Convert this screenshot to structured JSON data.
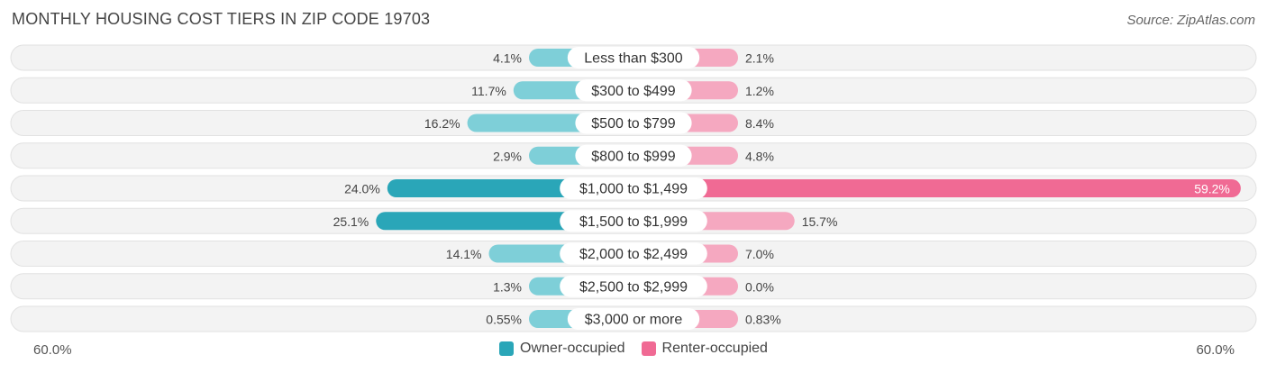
{
  "header": {
    "title": "MONTHLY HOUSING COST TIERS IN ZIP CODE 19703",
    "source": "Source: ZipAtlas.com"
  },
  "colors": {
    "owner": "#2aa6b8",
    "owner_light": "#7ecfd8",
    "renter": "#f06a94",
    "renter_light": "#f5a8c0",
    "row_bg": "#f1f1f1"
  },
  "chart_data": {
    "type": "bar",
    "orientation": "diverging-horizontal",
    "categories": [
      "Less than $300",
      "$300 to $499",
      "$500 to $799",
      "$800 to $999",
      "$1,000 to $1,499",
      "$1,500 to $1,999",
      "$2,000 to $2,499",
      "$2,500 to $2,999",
      "$3,000 or more"
    ],
    "series": [
      {
        "name": "Owner-occupied",
        "values": [
          4.1,
          11.7,
          16.2,
          2.9,
          24.0,
          25.1,
          14.1,
          1.3,
          0.55
        ],
        "labels": [
          "4.1%",
          "11.7%",
          "16.2%",
          "2.9%",
          "24.0%",
          "25.1%",
          "14.1%",
          "1.3%",
          "0.55%"
        ]
      },
      {
        "name": "Renter-occupied",
        "values": [
          2.1,
          1.2,
          8.4,
          4.8,
          59.2,
          15.7,
          7.0,
          0.0,
          0.83
        ],
        "labels": [
          "2.1%",
          "1.2%",
          "8.4%",
          "4.8%",
          "59.2%",
          "15.7%",
          "7.0%",
          "0.0%",
          "0.83%"
        ]
      }
    ],
    "xlim": [
      -60,
      60
    ],
    "axis_min_label": "60.0%",
    "axis_max_label": "60.0%",
    "legend_position": "bottom-center"
  }
}
